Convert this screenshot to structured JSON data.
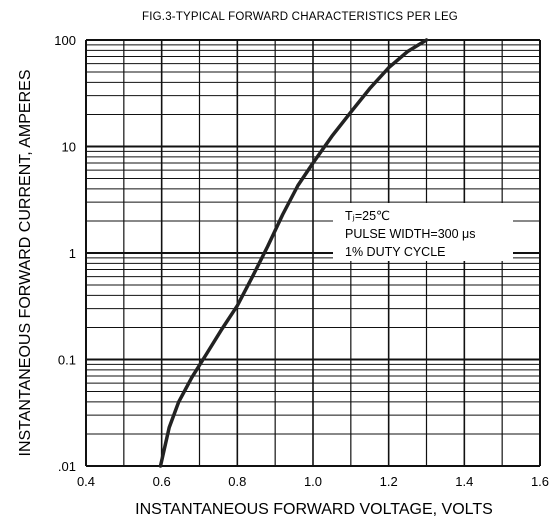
{
  "chart_data": {
    "type": "line",
    "title": "FIG.3-TYPICAL FORWARD CHARACTERISTICS PER LEG",
    "xlabel": "INSTANTANEOUS FORWARD VOLTAGE, VOLTS",
    "ylabel": "INSTANTANEOUS FORWARD CURRENT, AMPERES",
    "xlim": [
      0.4,
      1.6
    ],
    "ylim": [
      0.01,
      100
    ],
    "y_scale": "log",
    "grid": true,
    "x_ticks": [
      "0.4",
      "0.6",
      "0.8",
      "1.0",
      "1.2",
      "1.4",
      "1.6"
    ],
    "y_ticks": [
      ".01",
      "0.1",
      "1",
      "10",
      "100"
    ],
    "x_tick_values": [
      0.4,
      0.6,
      0.8,
      1.0,
      1.2,
      1.4,
      1.6
    ],
    "y_tick_values": [
      0.01,
      0.1,
      1,
      10,
      100
    ],
    "series": [
      {
        "x": [
          0.597,
          0.62,
          0.645,
          0.68,
          0.72,
          0.76,
          0.8,
          0.84,
          0.88,
          0.92,
          0.96,
          1.0,
          1.05,
          1.1,
          1.15,
          1.2,
          1.25,
          1.3
        ],
        "y": [
          0.01,
          0.023,
          0.04,
          0.068,
          0.115,
          0.195,
          0.32,
          0.6,
          1.15,
          2.3,
          4.3,
          7.0,
          12.5,
          21,
          35,
          55,
          78,
          100
        ]
      }
    ],
    "annotation": {
      "lines": [
        "Tⱼ=25℃",
        "PULSE WIDTH=300 μs",
        "1% DUTY CYCLE"
      ]
    }
  }
}
